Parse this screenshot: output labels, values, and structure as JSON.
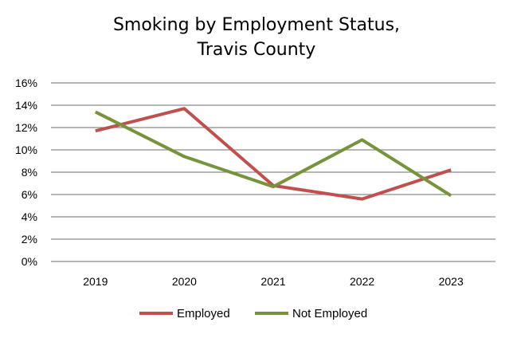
{
  "chart_data": {
    "type": "line",
    "title_line1": "Smoking by Employment Status,",
    "title_line2": "Travis County",
    "xlabel": "",
    "ylabel": "",
    "categories": [
      "2019",
      "2020",
      "2021",
      "2022",
      "2023"
    ],
    "y_ticks": [
      "0%",
      "2%",
      "4%",
      "6%",
      "8%",
      "10%",
      "12%",
      "14%",
      "16%"
    ],
    "ylim": [
      0,
      16
    ],
    "grid": true,
    "legend_position": "bottom",
    "series": [
      {
        "name": "Employed",
        "color": "#c0504d",
        "values": [
          11.7,
          13.7,
          6.8,
          5.6,
          8.2
        ]
      },
      {
        "name": "Not Employed",
        "color": "#77933c",
        "values": [
          13.4,
          9.4,
          6.7,
          10.9,
          5.9
        ]
      }
    ]
  }
}
